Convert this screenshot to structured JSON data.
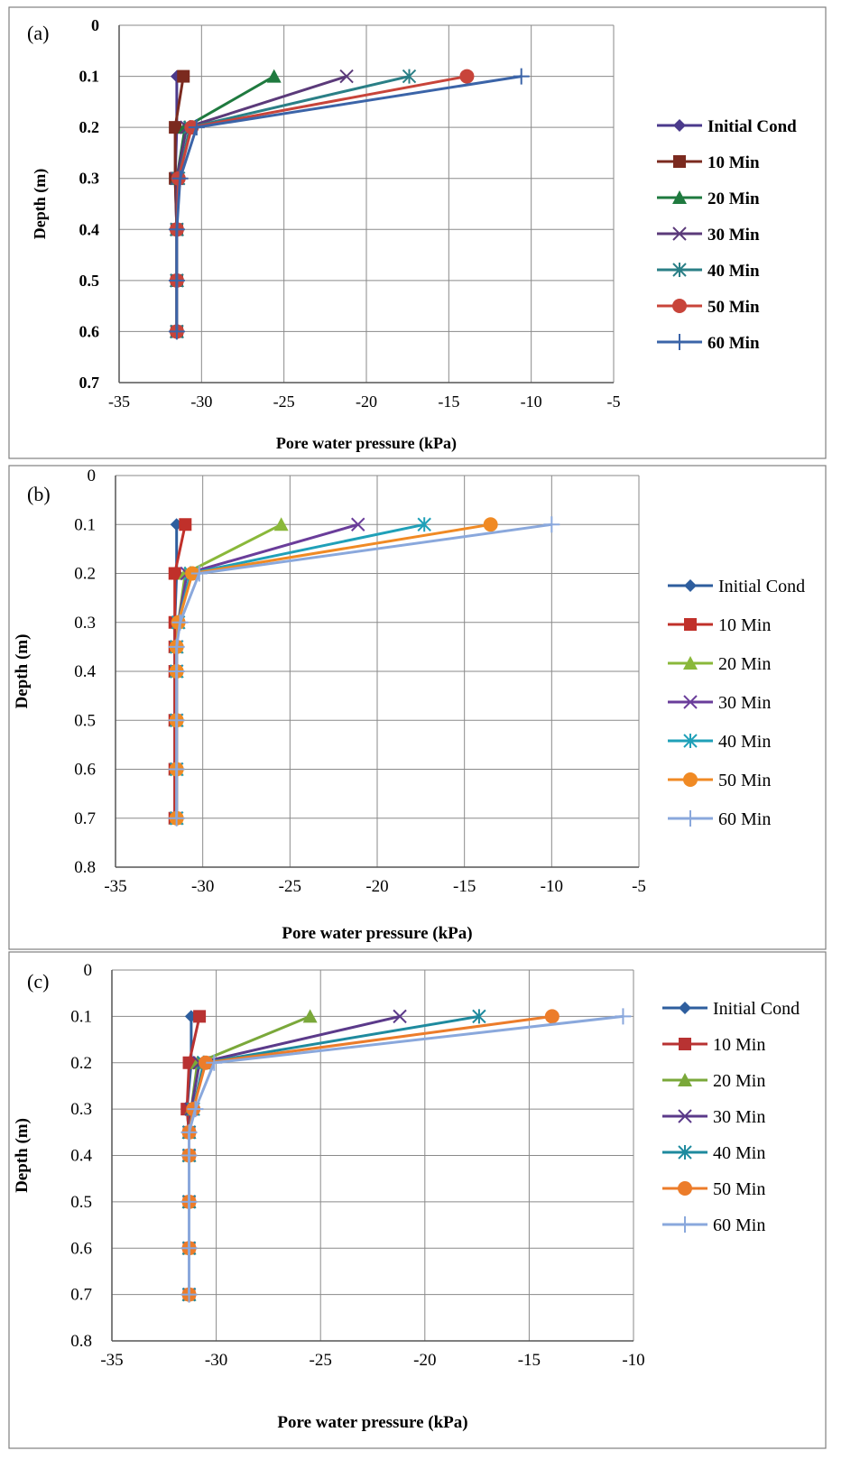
{
  "chart_data": [
    {
      "panel_label": "(a)",
      "type": "line",
      "xlabel": "Pore water pressure (kPa)",
      "ylabel": "Depth (m)",
      "xlim": [
        -35,
        -5
      ],
      "ylim": [
        0,
        0.7
      ],
      "y_inverted": true,
      "xticks": [
        "-35",
        "-30",
        "-25",
        "-20",
        "-15",
        "-10",
        "-5"
      ],
      "yticks": [
        "0",
        "0.1",
        "0.2",
        "0.3",
        "0.4",
        "0.5",
        "0.6",
        "0.7"
      ],
      "grid": true,
      "legend_position": "right",
      "series": [
        {
          "name": "Initial Cond",
          "color": "#4b3a8c",
          "marker": "diamond",
          "points": [
            [
              -31.5,
              0.1
            ],
            [
              -31.5,
              0.2
            ],
            [
              -31.6,
              0.3
            ],
            [
              -31.5,
              0.4
            ],
            [
              -31.5,
              0.5
            ],
            [
              -31.5,
              0.6
            ]
          ]
        },
        {
          "name": "10 Min",
          "color": "#7b2a1f",
          "marker": "square",
          "points": [
            [
              -31.1,
              0.1
            ],
            [
              -31.6,
              0.2
            ],
            [
              -31.6,
              0.3
            ],
            [
              -31.5,
              0.4
            ],
            [
              -31.5,
              0.5
            ],
            [
              -31.5,
              0.6
            ]
          ]
        },
        {
          "name": "20 Min",
          "color": "#1f7a3f",
          "marker": "triangle",
          "points": [
            [
              -25.6,
              0.1
            ],
            [
              -31.0,
              0.2
            ],
            [
              -31.5,
              0.3
            ],
            [
              -31.5,
              0.4
            ],
            [
              -31.5,
              0.5
            ],
            [
              -31.5,
              0.6
            ]
          ]
        },
        {
          "name": "30 Min",
          "color": "#5b3a7a",
          "marker": "x",
          "points": [
            [
              -21.2,
              0.1
            ],
            [
              -30.9,
              0.2
            ],
            [
              -31.5,
              0.3
            ],
            [
              -31.5,
              0.4
            ],
            [
              -31.5,
              0.5
            ],
            [
              -31.5,
              0.6
            ]
          ]
        },
        {
          "name": "40 Min",
          "color": "#2a7f86",
          "marker": "star",
          "points": [
            [
              -17.4,
              0.1
            ],
            [
              -30.7,
              0.2
            ],
            [
              -31.4,
              0.3
            ],
            [
              -31.5,
              0.4
            ],
            [
              -31.5,
              0.5
            ],
            [
              -31.5,
              0.6
            ]
          ]
        },
        {
          "name": "50 Min",
          "color": "#c8443a",
          "marker": "circle",
          "points": [
            [
              -13.9,
              0.1
            ],
            [
              -30.6,
              0.2
            ],
            [
              -31.4,
              0.3
            ],
            [
              -31.5,
              0.4
            ],
            [
              -31.5,
              0.5
            ],
            [
              -31.5,
              0.6
            ]
          ]
        },
        {
          "name": "60 Min",
          "color": "#3b64a8",
          "marker": "plus",
          "points": [
            [
              -10.6,
              0.1
            ],
            [
              -30.3,
              0.2
            ],
            [
              -31.3,
              0.3
            ],
            [
              -31.5,
              0.4
            ],
            [
              -31.5,
              0.5
            ],
            [
              -31.5,
              0.6
            ]
          ]
        }
      ]
    },
    {
      "panel_label": "(b)",
      "type": "line",
      "xlabel": "Pore water pressure (kPa)",
      "ylabel": "Depth (m)",
      "xlim": [
        -35,
        -5
      ],
      "ylim": [
        0,
        0.8
      ],
      "y_inverted": true,
      "xticks": [
        "-35",
        "-30",
        "-25",
        "-20",
        "-15",
        "-10",
        "-5"
      ],
      "yticks": [
        "0",
        "0.1",
        "0.2",
        "0.3",
        "0.4",
        "0.5",
        "0.6",
        "0.7",
        "0.8"
      ],
      "grid": true,
      "legend_position": "right",
      "series": [
        {
          "name": "Initial Cond",
          "color": "#2e5e9e",
          "marker": "diamond",
          "points": [
            [
              -31.5,
              0.1
            ],
            [
              -31.5,
              0.2
            ],
            [
              -31.6,
              0.3
            ],
            [
              -31.6,
              0.35
            ],
            [
              -31.6,
              0.4
            ],
            [
              -31.6,
              0.5
            ],
            [
              -31.6,
              0.6
            ],
            [
              -31.6,
              0.7
            ]
          ]
        },
        {
          "name": "10 Min",
          "color": "#c0302a",
          "marker": "square",
          "points": [
            [
              -31.0,
              0.1
            ],
            [
              -31.6,
              0.2
            ],
            [
              -31.6,
              0.3
            ],
            [
              -31.6,
              0.35
            ],
            [
              -31.6,
              0.4
            ],
            [
              -31.6,
              0.5
            ],
            [
              -31.6,
              0.6
            ],
            [
              -31.6,
              0.7
            ]
          ]
        },
        {
          "name": "20 Min",
          "color": "#8ab83a",
          "marker": "triangle",
          "points": [
            [
              -25.5,
              0.1
            ],
            [
              -31.0,
              0.2
            ],
            [
              -31.4,
              0.3
            ],
            [
              -31.5,
              0.35
            ],
            [
              -31.5,
              0.4
            ],
            [
              -31.5,
              0.5
            ],
            [
              -31.5,
              0.6
            ],
            [
              -31.5,
              0.7
            ]
          ]
        },
        {
          "name": "30 Min",
          "color": "#6a3d9a",
          "marker": "x",
          "points": [
            [
              -21.1,
              0.1
            ],
            [
              -30.9,
              0.2
            ],
            [
              -31.4,
              0.3
            ],
            [
              -31.5,
              0.35
            ],
            [
              -31.5,
              0.4
            ],
            [
              -31.5,
              0.5
            ],
            [
              -31.5,
              0.6
            ],
            [
              -31.5,
              0.7
            ]
          ]
        },
        {
          "name": "40 Min",
          "color": "#1fa0b8",
          "marker": "star",
          "points": [
            [
              -17.3,
              0.1
            ],
            [
              -30.7,
              0.2
            ],
            [
              -31.4,
              0.3
            ],
            [
              -31.5,
              0.35
            ],
            [
              -31.5,
              0.4
            ],
            [
              -31.5,
              0.5
            ],
            [
              -31.5,
              0.6
            ],
            [
              -31.5,
              0.7
            ]
          ]
        },
        {
          "name": "50 Min",
          "color": "#f08a24",
          "marker": "circle",
          "points": [
            [
              -13.5,
              0.1
            ],
            [
              -30.6,
              0.2
            ],
            [
              -31.4,
              0.3
            ],
            [
              -31.5,
              0.35
            ],
            [
              -31.5,
              0.4
            ],
            [
              -31.5,
              0.5
            ],
            [
              -31.5,
              0.6
            ],
            [
              -31.5,
              0.7
            ]
          ]
        },
        {
          "name": "60 Min",
          "color": "#8aa8dc",
          "marker": "plus",
          "points": [
            [
              -10.0,
              0.1
            ],
            [
              -30.2,
              0.2
            ],
            [
              -31.3,
              0.3
            ],
            [
              -31.5,
              0.35
            ],
            [
              -31.5,
              0.4
            ],
            [
              -31.5,
              0.5
            ],
            [
              -31.5,
              0.6
            ],
            [
              -31.5,
              0.7
            ]
          ]
        }
      ]
    },
    {
      "panel_label": "(c)",
      "type": "line",
      "xlabel": "Pore water pressure (kPa)",
      "ylabel": "Depth (m)",
      "xlim": [
        -35,
        -10
      ],
      "ylim": [
        0,
        0.8
      ],
      "y_inverted": true,
      "xticks": [
        "-35",
        "-30",
        "-25",
        "-20",
        "-15",
        "-10"
      ],
      "yticks": [
        "0",
        "0.1",
        "0.2",
        "0.3",
        "0.4",
        "0.5",
        "0.6",
        "0.7",
        "0.8"
      ],
      "grid": true,
      "legend_position": "right",
      "series": [
        {
          "name": "Initial Cond",
          "color": "#2e5e9e",
          "marker": "diamond",
          "points": [
            [
              -31.2,
              0.1
            ],
            [
              -31.2,
              0.2
            ],
            [
              -31.4,
              0.3
            ],
            [
              -31.3,
              0.35
            ],
            [
              -31.3,
              0.4
            ],
            [
              -31.3,
              0.5
            ],
            [
              -31.3,
              0.6
            ],
            [
              -31.3,
              0.7
            ]
          ]
        },
        {
          "name": "10 Min",
          "color": "#b83232",
          "marker": "square",
          "points": [
            [
              -30.8,
              0.1
            ],
            [
              -31.3,
              0.2
            ],
            [
              -31.4,
              0.3
            ],
            [
              -31.3,
              0.35
            ],
            [
              -31.3,
              0.4
            ],
            [
              -31.3,
              0.5
            ],
            [
              -31.3,
              0.6
            ],
            [
              -31.3,
              0.7
            ]
          ]
        },
        {
          "name": "20 Min",
          "color": "#7aa83a",
          "marker": "triangle",
          "points": [
            [
              -25.5,
              0.1
            ],
            [
              -30.9,
              0.2
            ],
            [
              -31.2,
              0.3
            ],
            [
              -31.3,
              0.35
            ],
            [
              -31.3,
              0.4
            ],
            [
              -31.3,
              0.5
            ],
            [
              -31.3,
              0.6
            ],
            [
              -31.3,
              0.7
            ]
          ]
        },
        {
          "name": "30 Min",
          "color": "#5b3a8a",
          "marker": "x",
          "points": [
            [
              -21.2,
              0.1
            ],
            [
              -30.8,
              0.2
            ],
            [
              -31.2,
              0.3
            ],
            [
              -31.3,
              0.35
            ],
            [
              -31.3,
              0.4
            ],
            [
              -31.3,
              0.5
            ],
            [
              -31.3,
              0.6
            ],
            [
              -31.3,
              0.7
            ]
          ]
        },
        {
          "name": "40 Min",
          "color": "#1e8a9e",
          "marker": "star",
          "points": [
            [
              -17.4,
              0.1
            ],
            [
              -30.6,
              0.2
            ],
            [
              -31.1,
              0.3
            ],
            [
              -31.3,
              0.35
            ],
            [
              -31.3,
              0.4
            ],
            [
              -31.3,
              0.5
            ],
            [
              -31.3,
              0.6
            ],
            [
              -31.3,
              0.7
            ]
          ]
        },
        {
          "name": "50 Min",
          "color": "#ec7c2a",
          "marker": "circle",
          "points": [
            [
              -13.9,
              0.1
            ],
            [
              -30.5,
              0.2
            ],
            [
              -31.1,
              0.3
            ],
            [
              -31.3,
              0.35
            ],
            [
              -31.3,
              0.4
            ],
            [
              -31.3,
              0.5
            ],
            [
              -31.3,
              0.6
            ],
            [
              -31.3,
              0.7
            ]
          ]
        },
        {
          "name": "60 Min",
          "color": "#8aa8dc",
          "marker": "plus",
          "points": [
            [
              -10.5,
              0.1
            ],
            [
              -30.1,
              0.2
            ],
            [
              -31.0,
              0.3
            ],
            [
              -31.3,
              0.35
            ],
            [
              -31.3,
              0.4
            ],
            [
              -31.3,
              0.5
            ],
            [
              -31.3,
              0.6
            ],
            [
              -31.3,
              0.7
            ]
          ]
        }
      ]
    }
  ]
}
